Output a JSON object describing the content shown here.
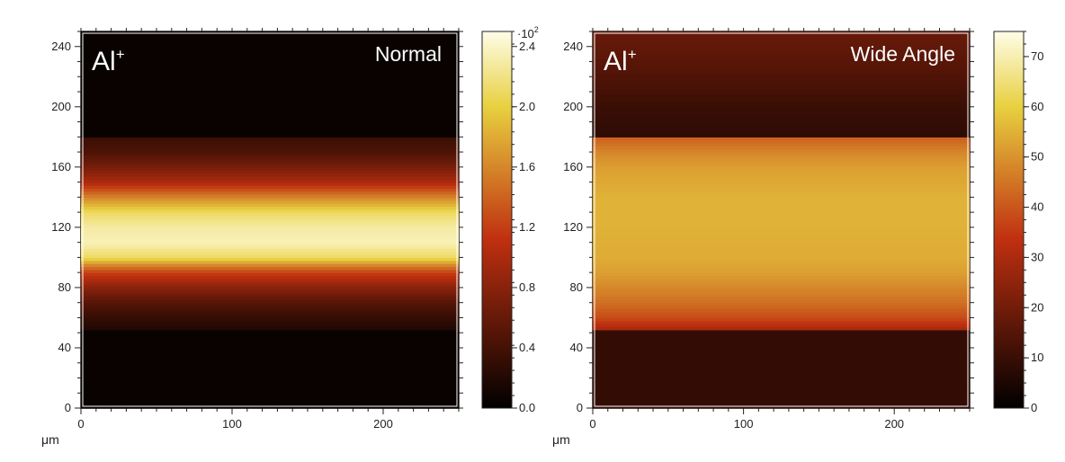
{
  "colors": {
    "map_low": "#000000",
    "map_mid": "#c03010",
    "map_high": "#fffde8"
  },
  "chart_data": [
    {
      "type": "heatmap",
      "ion_label": "Al",
      "ion_superscript": "+",
      "mode_label": "Normal",
      "x_unit": "μm",
      "xlim": [
        0,
        250
      ],
      "ylim": [
        0,
        250
      ],
      "x_ticks": [
        0,
        100,
        200
      ],
      "y_ticks": [
        0,
        40,
        80,
        120,
        160,
        200,
        240
      ],
      "colorbar": {
        "min": 0,
        "max": 2.5,
        "ticks": [
          "0.0",
          "0.4",
          "0.8",
          "1.2",
          "1.6",
          "2.0",
          "2.4"
        ],
        "tick_values": [
          0,
          0.4,
          0.8,
          1.2,
          1.6,
          2.0,
          2.4
        ],
        "multiplier_prefix": "·10",
        "multiplier_exp": "2"
      },
      "intensity_profile": {
        "y": [
          0,
          52,
          53,
          60,
          70,
          80,
          90,
          95,
          100,
          110,
          120,
          130,
          140,
          150,
          160,
          170,
          179,
          180,
          250
        ],
        "value": [
          0.05,
          0.05,
          0.2,
          0.3,
          0.5,
          0.8,
          1.2,
          1.6,
          2.1,
          2.35,
          2.3,
          2.1,
          1.6,
          1.0,
          0.7,
          0.45,
          0.35,
          0.05,
          0.05
        ]
      }
    },
    {
      "type": "heatmap",
      "ion_label": "Al",
      "ion_superscript": "+",
      "mode_label": "Wide Angle",
      "x_unit": "μm",
      "xlim": [
        0,
        250
      ],
      "ylim": [
        0,
        250
      ],
      "x_ticks": [
        0,
        100,
        200
      ],
      "y_ticks": [
        0,
        40,
        80,
        120,
        160,
        200,
        240
      ],
      "colorbar": {
        "min": 0,
        "max": 75,
        "ticks": [
          "0",
          "10",
          "20",
          "30",
          "40",
          "50",
          "60",
          "70"
        ],
        "tick_values": [
          0,
          10,
          20,
          30,
          40,
          50,
          60,
          70
        ],
        "multiplier_prefix": "",
        "multiplier_exp": ""
      },
      "intensity_profile": {
        "y": [
          0,
          52,
          53,
          60,
          70,
          80,
          90,
          100,
          120,
          140,
          160,
          170,
          179,
          180,
          200,
          220,
          240,
          250
        ],
        "value": [
          9,
          9,
          30,
          38,
          44,
          48,
          52,
          54,
          55,
          55,
          52,
          48,
          42,
          8,
          10,
          14,
          17,
          18
        ]
      }
    }
  ]
}
